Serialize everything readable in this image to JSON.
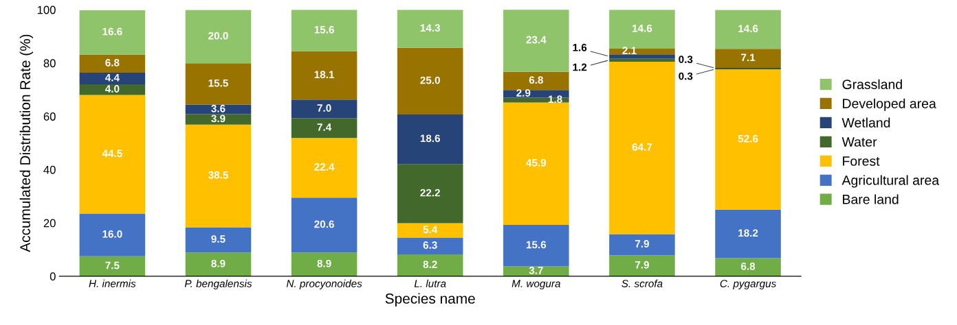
{
  "chart_data": {
    "type": "bar",
    "stacked": true,
    "ylabel": "Accumulated Distribution Rate (%)",
    "xlabel": "Species name",
    "categories": [
      "H. inermis",
      "P. bengalensis",
      "N. procyonoides",
      "L. lutra",
      "M. wogura",
      "S. scrofa",
      "C. pygargus"
    ],
    "series": [
      {
        "name": "Bare land",
        "color": "#70ad47",
        "values": [
          7.5,
          8.9,
          8.9,
          8.2,
          3.7,
          7.9,
          6.8
        ],
        "value_labels": [
          "7.5",
          "8.9",
          "8.9",
          "8.2",
          "3.7",
          "7.9",
          "6.8"
        ]
      },
      {
        "name": "Agricultural area",
        "color": "#4472c4",
        "values": [
          16.0,
          9.5,
          20.6,
          6.3,
          15.6,
          7.9,
          18.2
        ],
        "value_labels": [
          "16.0",
          "9.5",
          "20.6",
          "6.3",
          "15.6",
          "7.9",
          "18.2"
        ]
      },
      {
        "name": "Forest",
        "color": "#ffc000",
        "values": [
          44.5,
          38.5,
          22.4,
          5.4,
          45.9,
          64.7,
          52.6
        ],
        "value_labels": [
          "44.5",
          "38.5",
          "22.4",
          "5.4",
          "45.9",
          "64.7",
          "52.6"
        ]
      },
      {
        "name": "Water",
        "color": "#43682b",
        "values": [
          4.0,
          3.9,
          7.4,
          22.2,
          1.8,
          1.2,
          0.3
        ],
        "value_labels": [
          "4.0",
          "3.9",
          "7.4",
          "22.2",
          "1.8",
          "1.2",
          "0.3"
        ]
      },
      {
        "name": "Wetland",
        "color": "#264478",
        "values": [
          4.4,
          3.6,
          7.0,
          18.6,
          2.9,
          1.6,
          0.3
        ],
        "value_labels": [
          "4.4",
          "3.6",
          "7.0",
          "18.6",
          "2.9",
          "1.6",
          "0.3"
        ]
      },
      {
        "name": "Developed area",
        "color": "#997300",
        "values": [
          6.8,
          15.5,
          18.1,
          25.0,
          6.8,
          2.1,
          7.1
        ],
        "value_labels": [
          "6.8",
          "15.5",
          "18.1",
          "25.0",
          "6.8",
          "2.1",
          "7.1"
        ]
      },
      {
        "name": "Grassland",
        "color": "#8fc46a",
        "values": [
          16.6,
          20.0,
          15.6,
          14.3,
          23.4,
          14.6,
          14.6
        ],
        "value_labels": [
          "16.6",
          "20.0",
          "15.6",
          "14.3",
          "23.4",
          "14.6",
          "14.6"
        ]
      }
    ],
    "ylim": [
      0,
      100
    ],
    "yticks": [
      0,
      20,
      40,
      60,
      80,
      100
    ],
    "legend": "right",
    "grid": false
  }
}
